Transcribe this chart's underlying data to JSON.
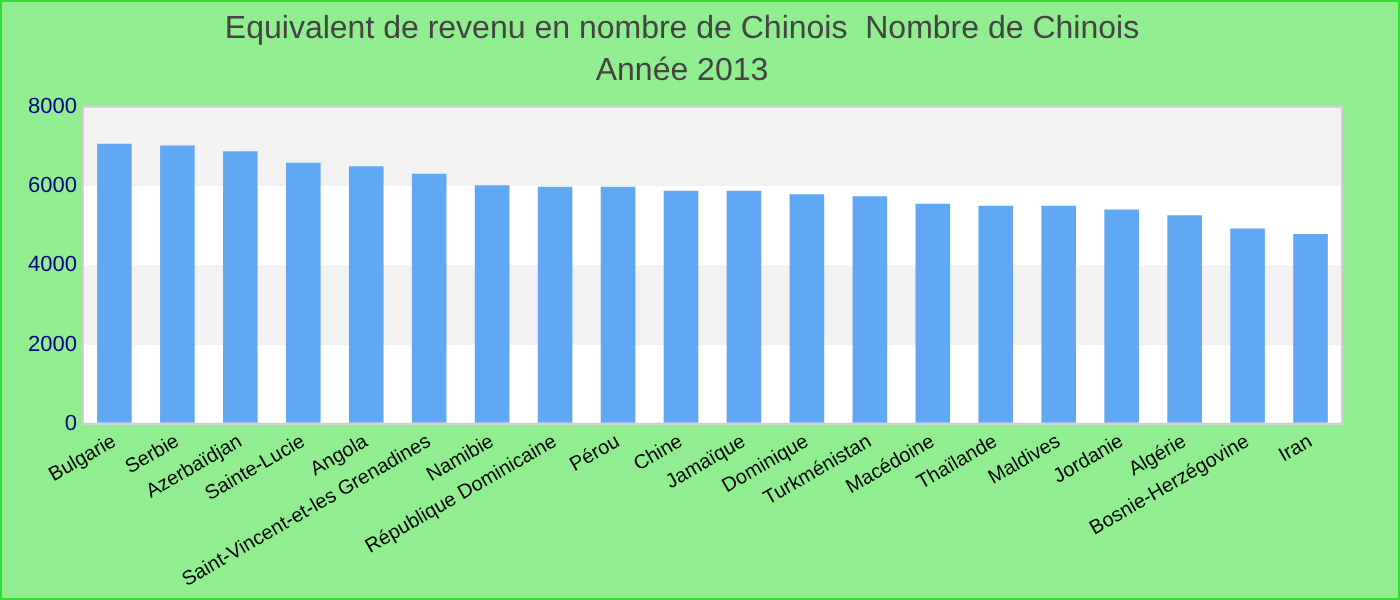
{
  "chart_data": {
    "type": "bar",
    "title": "Equivalent de revenu en nombre de Chinois  Nombre de Chinois",
    "subtitle": "Année 2013",
    "categories": [
      "Bulgarie",
      "Serbie",
      "Azerbaïdjan",
      "Sainte-Lucie",
      "Angola",
      "Saint-Vincent-et-les Grenadines",
      "Namibie",
      "République Dominicaine",
      "Pérou",
      "Chine",
      "Jamaïque",
      "Dominique",
      "Turkménistan",
      "Macédoine",
      "Thaïlande",
      "Maldives",
      "Jordanie",
      "Algérie",
      "Bosnie-Herzégovine",
      "Iran"
    ],
    "values": [
      7070,
      7020,
      6880,
      6590,
      6500,
      6310,
      6020,
      5980,
      5980,
      5880,
      5880,
      5790,
      5740,
      5550,
      5500,
      5500,
      5410,
      5260,
      4930,
      4790
    ],
    "color": "#61a8f4",
    "ylim": [
      0,
      8000
    ],
    "yticks": [
      0,
      2000,
      4000,
      6000,
      8000
    ],
    "grid": "y"
  }
}
